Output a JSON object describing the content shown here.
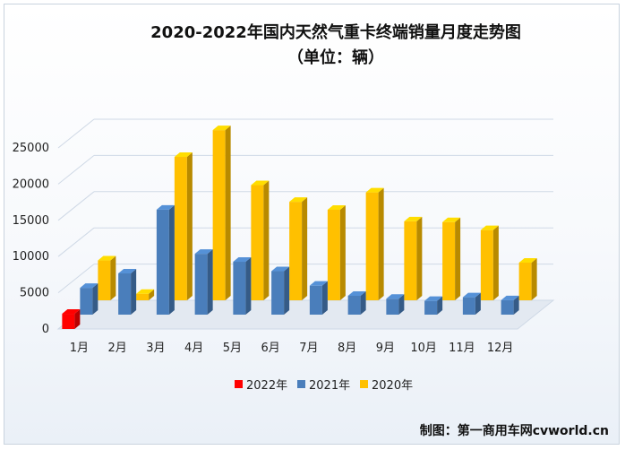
{
  "chart_data": {
    "type": "bar",
    "title_line1": "2020-2022年国内天然气重卡终端销量月度走势图",
    "title_line2": "（单位：辆）",
    "categories": [
      "1月",
      "2月",
      "3月",
      "4月",
      "5月",
      "6月",
      "7月",
      "8月",
      "9月",
      "10月",
      "11月",
      "12月"
    ],
    "series": [
      {
        "name": "2022年",
        "color": "#ff0000",
        "values": [
          2100,
          null,
          null,
          null,
          null,
          null,
          null,
          null,
          null,
          null,
          null,
          null
        ]
      },
      {
        "name": "2021年",
        "color": "#4a7ebb",
        "values": [
          3700,
          5700,
          14500,
          8400,
          7300,
          6000,
          4000,
          2600,
          2200,
          1900,
          2400,
          2000
        ]
      },
      {
        "name": "2020年",
        "color": "#ffc000",
        "values": [
          5500,
          900,
          19800,
          23500,
          15900,
          13600,
          12500,
          14900,
          10900,
          10800,
          9700,
          5200
        ]
      }
    ],
    "y_ticks": [
      0,
      5000,
      10000,
      15000,
      20000,
      25000
    ],
    "ylim": [
      0,
      25000
    ],
    "legend_position": "bottom",
    "grid": true
  },
  "credit": "制图：第一商用车网cvworld.cn"
}
